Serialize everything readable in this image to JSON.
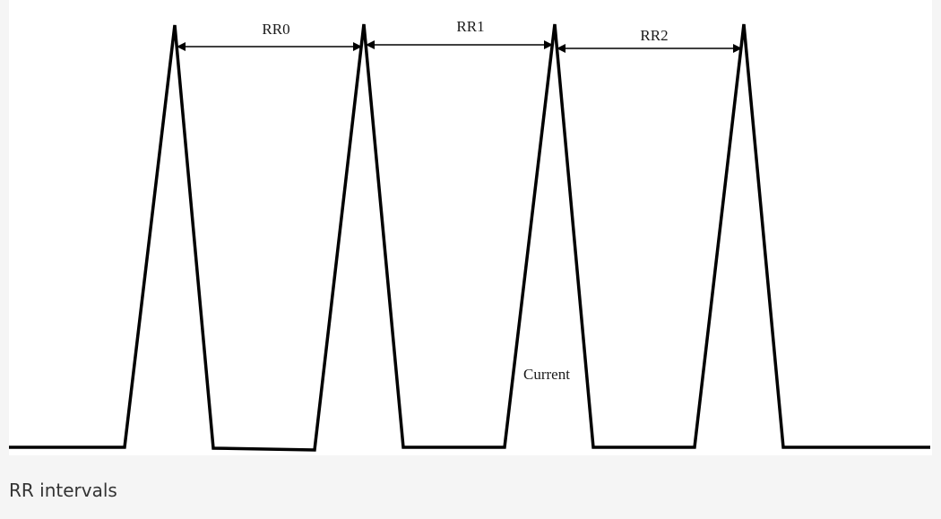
{
  "figure": {
    "labels": {
      "rr0": "RR0",
      "rr1": "RR1",
      "rr2": "RR2",
      "current": "Current"
    }
  },
  "caption": "RR intervals",
  "colors": {
    "page_background": "#f5f5f5",
    "figure_background": "#ffffff",
    "stroke": "#000000",
    "caption_text": "#333333"
  }
}
